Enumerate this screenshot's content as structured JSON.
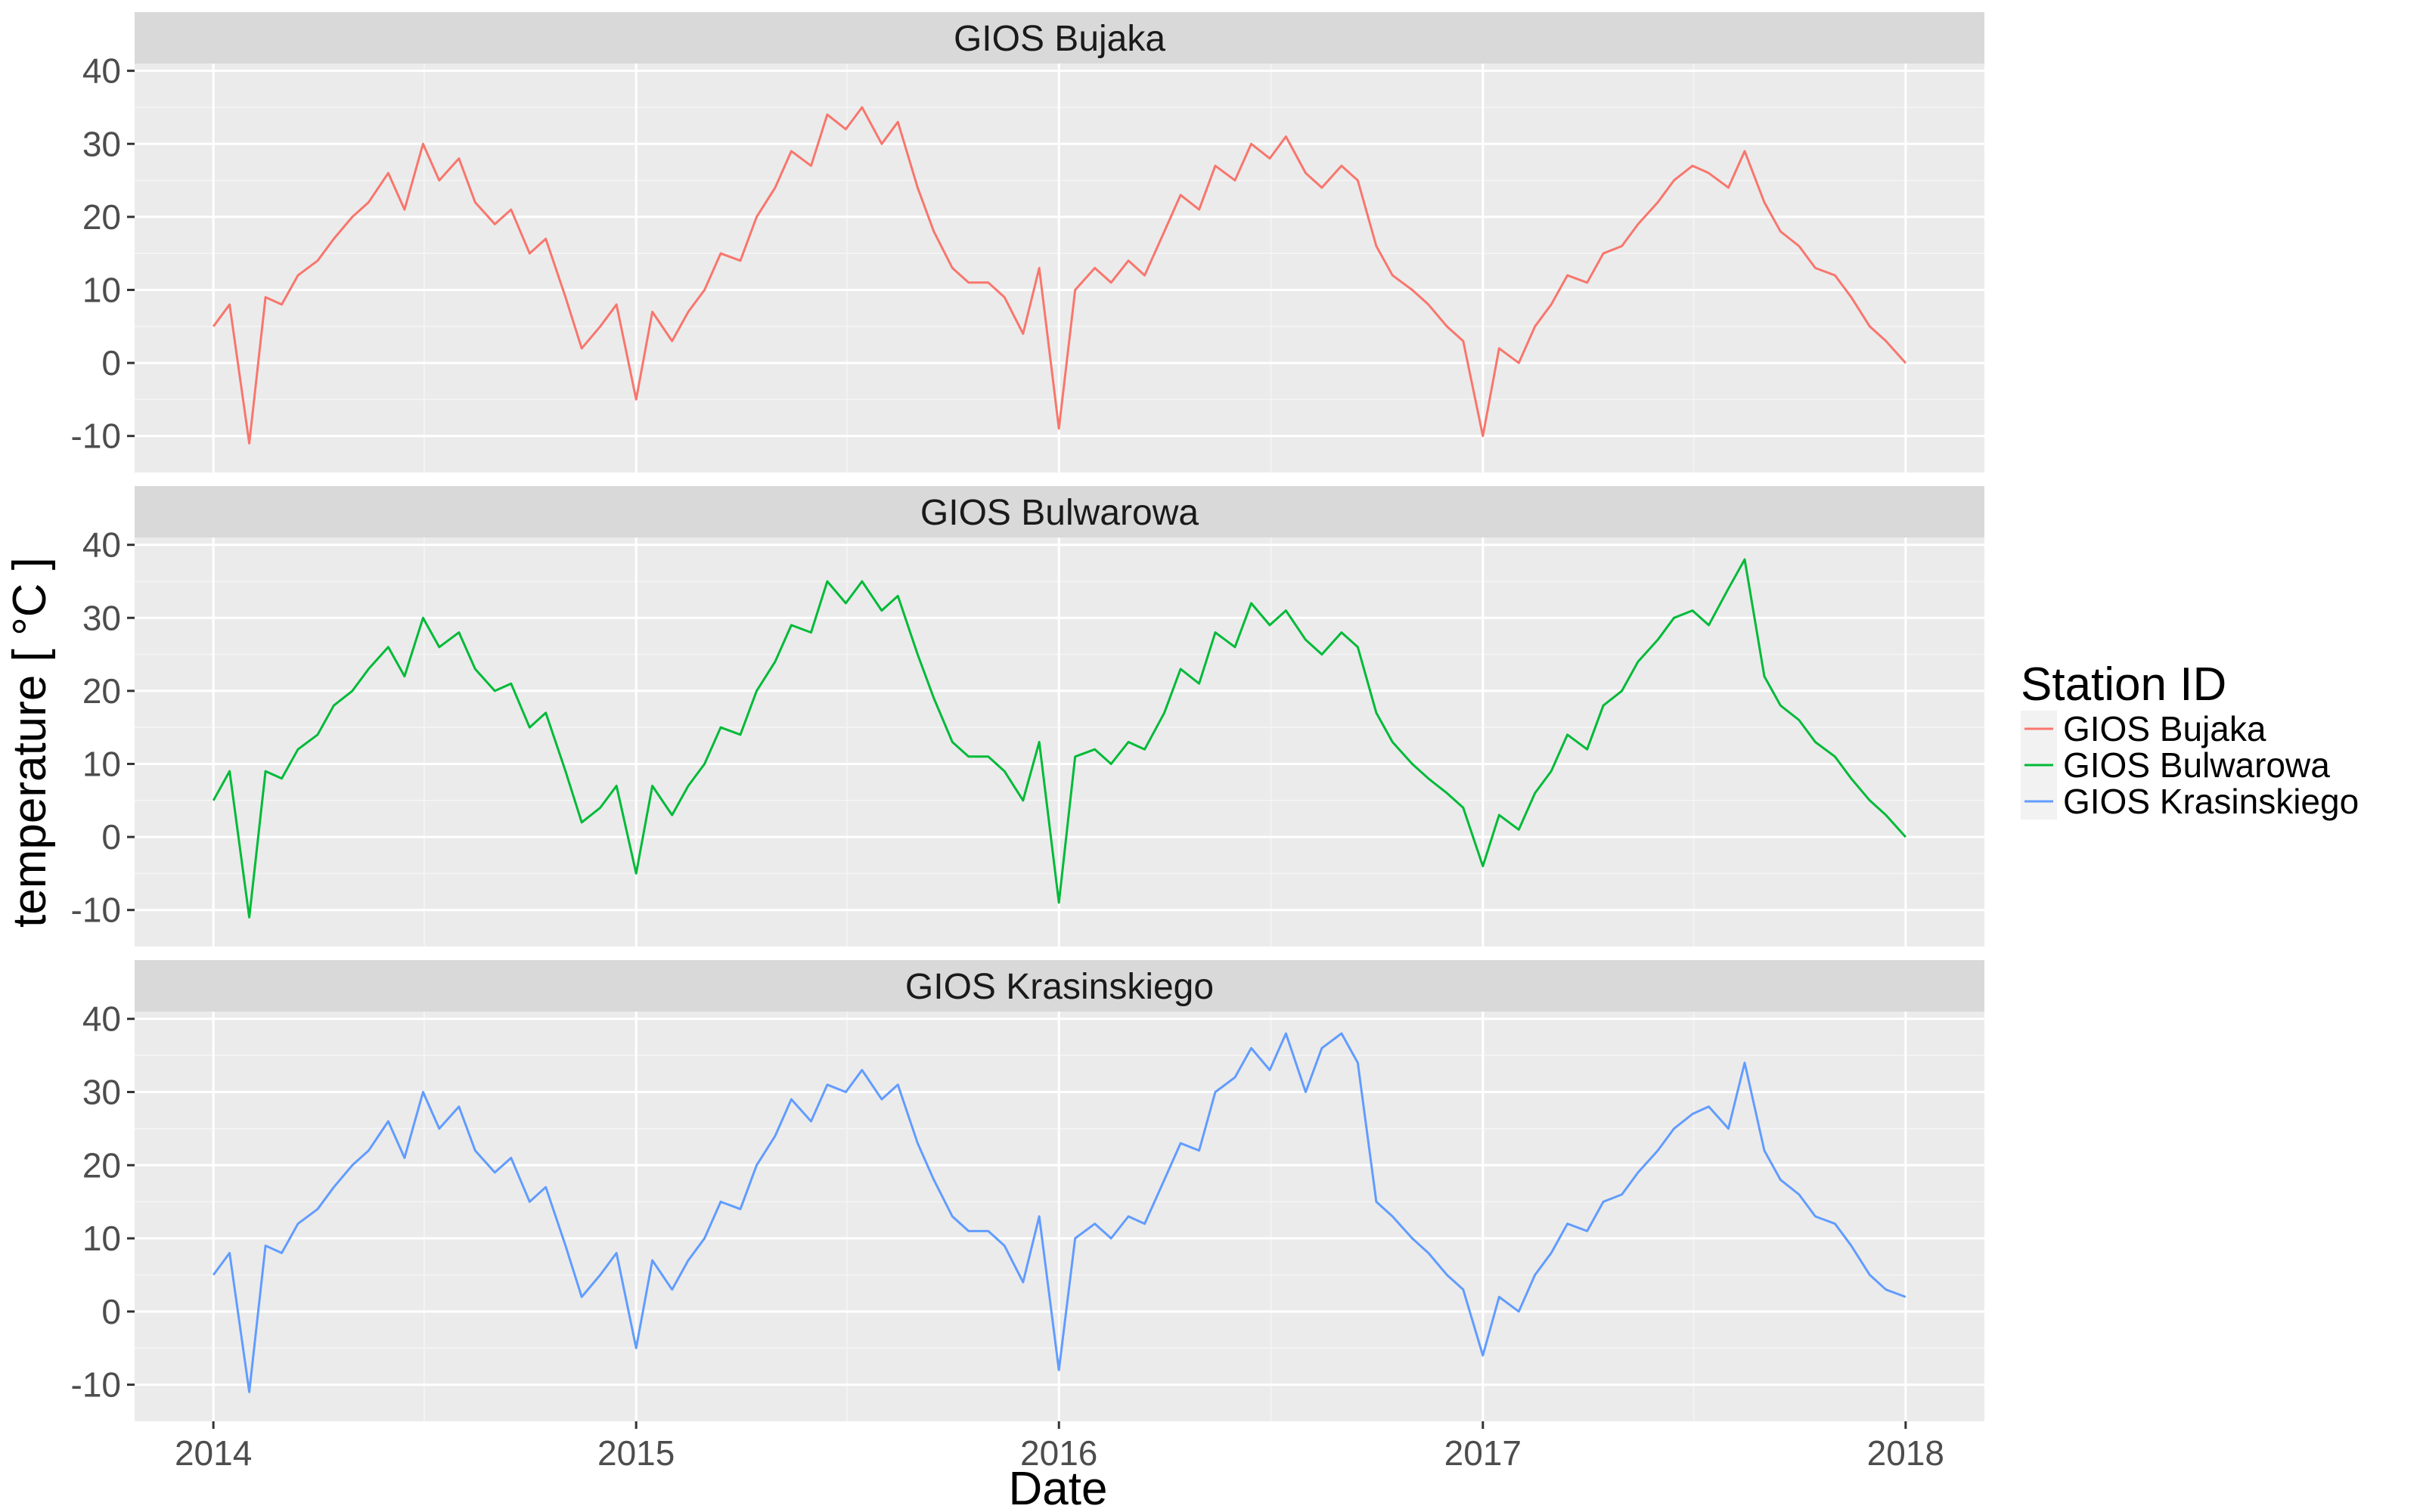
{
  "chart_data": {
    "type": "line",
    "facets": [
      "GIOS Bujaka",
      "GIOS Bulwarowa",
      "GIOS Krasinskiego"
    ],
    "xlabel": "Date",
    "ylabel": "temperature [ °C ]",
    "x_ticks": [
      "2014",
      "2015",
      "2016",
      "2017",
      "2018"
    ],
    "y_ticks": [
      "-10",
      "0",
      "10",
      "20",
      "30",
      "40"
    ],
    "xlim": [
      "2013-10-25",
      "2018-03-10"
    ],
    "ylim": [
      -15,
      41
    ],
    "grid": true,
    "legend": {
      "title": "Station ID",
      "position": "right",
      "entries": [
        "GIOS Bujaka",
        "GIOS Bulwarowa",
        "GIOS Krasinskiego"
      ]
    },
    "colors": {
      "GIOS Bujaka": "#F8766D",
      "GIOS Bulwarowa": "#00BA38",
      "GIOS Krasinskiego": "#619CFF"
    },
    "series": [
      {
        "name": "GIOS Bujaka",
        "x": [
          "2014-01-01",
          "2014-01-15",
          "2014-02-01",
          "2014-02-15",
          "2014-03-01",
          "2014-03-15",
          "2014-04-01",
          "2014-04-15",
          "2014-05-01",
          "2014-05-15",
          "2014-06-01",
          "2014-06-15",
          "2014-07-01",
          "2014-07-15",
          "2014-08-01",
          "2014-08-15",
          "2014-09-01",
          "2014-09-15",
          "2014-10-01",
          "2014-10-15",
          "2014-11-01",
          "2014-11-15",
          "2014-12-01",
          "2014-12-15",
          "2015-01-01",
          "2015-01-15",
          "2015-02-01",
          "2015-02-15",
          "2015-03-01",
          "2015-03-15",
          "2015-04-01",
          "2015-04-15",
          "2015-05-01",
          "2015-05-15",
          "2015-06-01",
          "2015-06-15",
          "2015-07-01",
          "2015-07-15",
          "2015-08-01",
          "2015-08-15",
          "2015-09-01",
          "2015-09-15",
          "2015-10-01",
          "2015-10-15",
          "2015-11-01",
          "2015-11-15",
          "2015-12-01",
          "2015-12-15",
          "2016-01-01",
          "2016-01-15",
          "2016-02-01",
          "2016-02-15",
          "2016-03-01",
          "2016-03-15",
          "2016-04-01",
          "2016-04-15",
          "2016-05-01",
          "2016-05-15",
          "2016-06-01",
          "2016-06-15",
          "2016-07-01",
          "2016-07-15",
          "2016-08-01",
          "2016-08-15",
          "2016-09-01",
          "2016-09-15",
          "2016-10-01",
          "2016-10-15",
          "2016-11-01",
          "2016-11-15",
          "2016-12-01",
          "2016-12-15",
          "2017-01-01",
          "2017-01-15",
          "2017-02-01",
          "2017-02-15",
          "2017-03-01",
          "2017-03-15",
          "2017-04-01",
          "2017-04-15",
          "2017-05-01",
          "2017-05-15",
          "2017-06-01",
          "2017-06-15",
          "2017-07-01",
          "2017-07-15",
          "2017-08-01",
          "2017-08-15",
          "2017-09-01",
          "2017-09-15",
          "2017-10-01",
          "2017-10-15",
          "2017-11-01",
          "2017-11-15",
          "2017-12-01",
          "2017-12-15",
          "2018-01-01"
        ],
        "y": [
          5,
          8,
          -11,
          9,
          8,
          12,
          14,
          17,
          20,
          22,
          26,
          21,
          30,
          25,
          28,
          22,
          19,
          21,
          15,
          17,
          9,
          2,
          5,
          8,
          -5,
          7,
          3,
          7,
          10,
          15,
          14,
          20,
          24,
          29,
          27,
          34,
          32,
          35,
          30,
          33,
          24,
          18,
          13,
          11,
          11,
          9,
          4,
          13,
          -9,
          10,
          13,
          11,
          14,
          12,
          18,
          23,
          21,
          27,
          25,
          30,
          28,
          31,
          26,
          24,
          27,
          25,
          16,
          12,
          10,
          8,
          5,
          3,
          -10,
          2,
          0,
          5,
          8,
          12,
          11,
          15,
          16,
          19,
          22,
          25,
          27,
          26,
          24,
          29,
          22,
          18,
          16,
          13,
          12,
          9,
          5,
          3,
          0
        ]
      },
      {
        "name": "GIOS Bulwarowa",
        "x": [
          "2014-01-01",
          "2014-01-15",
          "2014-02-01",
          "2014-02-15",
          "2014-03-01",
          "2014-03-15",
          "2014-04-01",
          "2014-04-15",
          "2014-05-01",
          "2014-05-15",
          "2014-06-01",
          "2014-06-15",
          "2014-07-01",
          "2014-07-15",
          "2014-08-01",
          "2014-08-15",
          "2014-09-01",
          "2014-09-15",
          "2014-10-01",
          "2014-10-15",
          "2014-11-01",
          "2014-11-15",
          "2014-12-01",
          "2014-12-15",
          "2015-01-01",
          "2015-01-15",
          "2015-02-01",
          "2015-02-15",
          "2015-03-01",
          "2015-03-15",
          "2015-04-01",
          "2015-04-15",
          "2015-05-01",
          "2015-05-15",
          "2015-06-01",
          "2015-06-15",
          "2015-07-01",
          "2015-07-15",
          "2015-08-01",
          "2015-08-15",
          "2015-09-01",
          "2015-09-15",
          "2015-10-01",
          "2015-10-15",
          "2015-11-01",
          "2015-11-15",
          "2015-12-01",
          "2015-12-15",
          "2016-01-01",
          "2016-01-15",
          "2016-02-01",
          "2016-02-15",
          "2016-03-01",
          "2016-03-15",
          "2016-04-01",
          "2016-04-15",
          "2016-05-01",
          "2016-05-15",
          "2016-06-01",
          "2016-06-15",
          "2016-07-01",
          "2016-07-15",
          "2016-08-01",
          "2016-08-15",
          "2016-09-01",
          "2016-09-15",
          "2016-10-01",
          "2016-10-15",
          "2016-11-01",
          "2016-11-15",
          "2016-12-01",
          "2016-12-15",
          "2017-01-01",
          "2017-01-15",
          "2017-02-01",
          "2017-02-15",
          "2017-03-01",
          "2017-03-15",
          "2017-04-01",
          "2017-04-15",
          "2017-05-01",
          "2017-05-15",
          "2017-06-01",
          "2017-06-15",
          "2017-07-01",
          "2017-07-15",
          "2017-08-01",
          "2017-08-15",
          "2017-09-01",
          "2017-09-15",
          "2017-10-01",
          "2017-10-15",
          "2017-11-01",
          "2017-11-15",
          "2017-12-01",
          "2017-12-15",
          "2018-01-01"
        ],
        "y": [
          5,
          9,
          -11,
          9,
          8,
          12,
          14,
          18,
          20,
          23,
          26,
          22,
          30,
          26,
          28,
          23,
          20,
          21,
          15,
          17,
          9,
          2,
          4,
          7,
          -5,
          7,
          3,
          7,
          10,
          15,
          14,
          20,
          24,
          29,
          28,
          35,
          32,
          35,
          31,
          33,
          25,
          19,
          13,
          11,
          11,
          9,
          5,
          13,
          -9,
          11,
          12,
          10,
          13,
          12,
          17,
          23,
          21,
          28,
          26,
          32,
          29,
          31,
          27,
          25,
          28,
          26,
          17,
          13,
          10,
          8,
          6,
          4,
          -4,
          3,
          1,
          6,
          9,
          14,
          12,
          18,
          20,
          24,
          27,
          30,
          31,
          29,
          34,
          38,
          22,
          18,
          16,
          13,
          11,
          8,
          5,
          3,
          0
        ]
      },
      {
        "name": "GIOS Krasinskiego",
        "x": [
          "2014-01-01",
          "2014-01-15",
          "2014-02-01",
          "2014-02-15",
          "2014-03-01",
          "2014-03-15",
          "2014-04-01",
          "2014-04-15",
          "2014-05-01",
          "2014-05-15",
          "2014-06-01",
          "2014-06-15",
          "2014-07-01",
          "2014-07-15",
          "2014-08-01",
          "2014-08-15",
          "2014-09-01",
          "2014-09-15",
          "2014-10-01",
          "2014-10-15",
          "2014-11-01",
          "2014-11-15",
          "2014-12-01",
          "2014-12-15",
          "2015-01-01",
          "2015-01-15",
          "2015-02-01",
          "2015-02-15",
          "2015-03-01",
          "2015-03-15",
          "2015-04-01",
          "2015-04-15",
          "2015-05-01",
          "2015-05-15",
          "2015-06-01",
          "2015-06-15",
          "2015-07-01",
          "2015-07-15",
          "2015-08-01",
          "2015-08-15",
          "2015-09-01",
          "2015-09-15",
          "2015-10-01",
          "2015-10-15",
          "2015-11-01",
          "2015-11-15",
          "2015-12-01",
          "2015-12-15",
          "2016-01-01",
          "2016-01-15",
          "2016-02-01",
          "2016-02-15",
          "2016-03-01",
          "2016-03-15",
          "2016-04-01",
          "2016-04-15",
          "2016-05-01",
          "2016-05-15",
          "2016-06-01",
          "2016-06-15",
          "2016-07-01",
          "2016-07-15",
          "2016-08-01",
          "2016-08-15",
          "2016-09-01",
          "2016-09-15",
          "2016-10-01",
          "2016-10-15",
          "2016-11-01",
          "2016-11-15",
          "2016-12-01",
          "2016-12-15",
          "2017-01-01",
          "2017-01-15",
          "2017-02-01",
          "2017-02-15",
          "2017-03-01",
          "2017-03-15",
          "2017-04-01",
          "2017-04-15",
          "2017-05-01",
          "2017-05-15",
          "2017-06-01",
          "2017-06-15",
          "2017-07-01",
          "2017-07-15",
          "2017-08-01",
          "2017-08-15",
          "2017-09-01",
          "2017-09-15",
          "2017-10-01",
          "2017-10-15",
          "2017-11-01",
          "2017-11-15",
          "2017-12-01",
          "2017-12-15",
          "2018-01-01"
        ],
        "y": [
          5,
          8,
          -11,
          9,
          8,
          12,
          14,
          17,
          20,
          22,
          26,
          21,
          30,
          25,
          28,
          22,
          19,
          21,
          15,
          17,
          9,
          2,
          5,
          8,
          -5,
          7,
          3,
          7,
          10,
          15,
          14,
          20,
          24,
          29,
          26,
          31,
          30,
          33,
          29,
          31,
          23,
          18,
          13,
          11,
          11,
          9,
          4,
          13,
          -8,
          10,
          12,
          10,
          13,
          12,
          18,
          23,
          22,
          30,
          32,
          36,
          33,
          38,
          30,
          36,
          38,
          34,
          15,
          13,
          10,
          8,
          5,
          3,
          -6,
          2,
          0,
          5,
          8,
          12,
          11,
          15,
          16,
          19,
          22,
          25,
          27,
          28,
          25,
          34,
          22,
          18,
          16,
          13,
          12,
          9,
          5,
          3,
          2
        ]
      }
    ]
  }
}
